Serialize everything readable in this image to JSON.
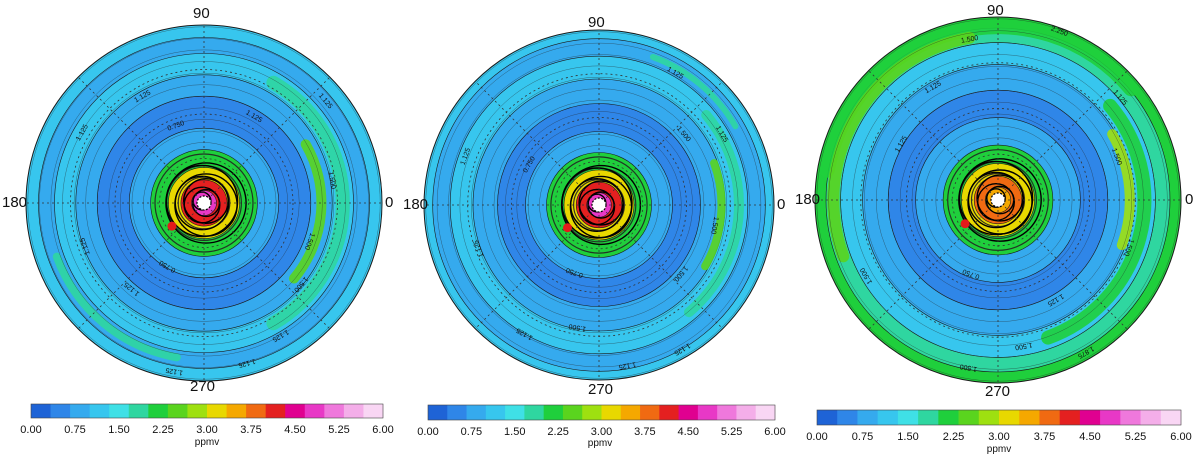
{
  "colorbar": {
    "colors": [
      "#1e63d6",
      "#2f86e8",
      "#35aaee",
      "#37c6ee",
      "#3fe0e6",
      "#2fd6a0",
      "#1fcf3c",
      "#5ad41e",
      "#9ee010",
      "#e8d800",
      "#f5a800",
      "#f06a12",
      "#e42020",
      "#e00090",
      "#e838c6",
      "#ef78dc",
      "#f4aee9",
      "#f9d6f4"
    ],
    "tick_labels": [
      "0.00",
      "0.75",
      "1.50",
      "2.25",
      "3.00",
      "3.75",
      "4.50",
      "5.25",
      "6.00"
    ],
    "unit": "ppmv"
  },
  "chart_data": [
    {
      "type": "heatmap",
      "projection": "polar",
      "angle_labels": {
        "top": "90",
        "left": "180",
        "right": "0",
        "bottom": "270"
      },
      "contour_labels": [
        "1.125",
        "1.125",
        "1.125",
        "1.125",
        "1.125",
        "1.125",
        "0.750",
        "0.750",
        "1.500",
        "1.500",
        "1.500",
        "1.125",
        "1.125",
        "1.125"
      ],
      "marker": "red-dot",
      "colorbar_range": [
        0.0,
        6.0
      ],
      "colorbar_unit": "ppmv"
    },
    {
      "type": "heatmap",
      "projection": "polar",
      "angle_labels": {
        "top": "90",
        "left": "180",
        "right": "0",
        "bottom": "270"
      },
      "contour_labels": [
        "1.125",
        "1.125",
        "1.500",
        "1.500",
        "1.125",
        "1.125",
        "0.750",
        "0.750",
        "1.500",
        "1.125",
        "1.125",
        "1.500",
        "1.125"
      ],
      "marker": "red-dot",
      "colorbar_range": [
        0.0,
        6.0
      ],
      "colorbar_unit": "ppmv"
    },
    {
      "type": "heatmap",
      "projection": "polar",
      "angle_labels": {
        "top": "90",
        "left": "180",
        "right": "0",
        "bottom": "270"
      },
      "contour_labels": [
        "1.500",
        "1.875",
        "1.500",
        "1.125",
        "1.125",
        "0.750",
        "1.500",
        "1.500",
        "1.125",
        "1.500",
        "1.125",
        "2.250",
        "1.500"
      ],
      "marker": "red-dot",
      "colorbar_range": [
        0.0,
        6.0
      ],
      "colorbar_unit": "ppmv"
    }
  ]
}
